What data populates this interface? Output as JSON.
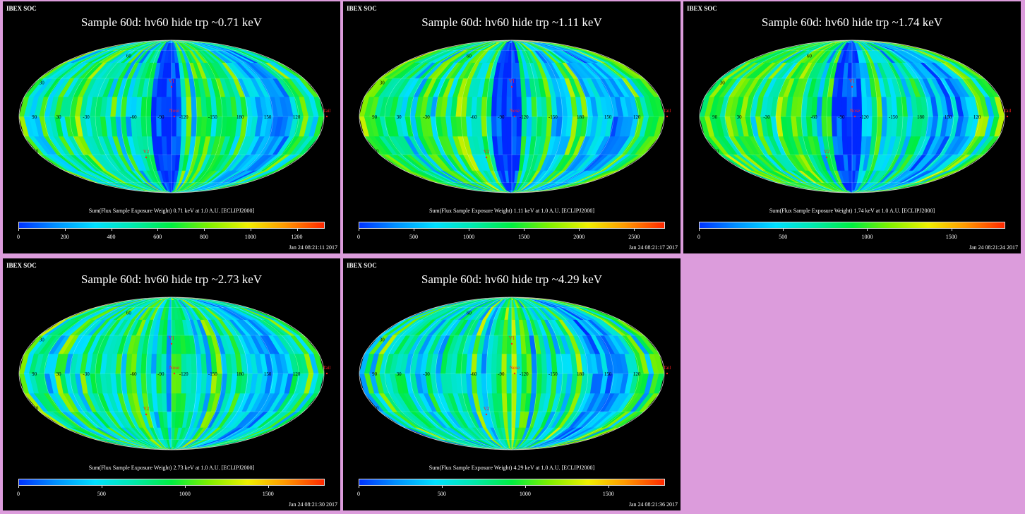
{
  "panels": [
    {
      "header": "IBEX SOC",
      "title": "Sample 60d: hv60 hide trp ~0.71 keV",
      "colorbar_label": "Sum(Flux Sample Exposure Weight)  0.71 keV at 1.0 A.U. [ECLIPJ2000]",
      "ticks": [
        "0",
        "200",
        "400",
        "600",
        "800",
        "1000",
        "1200"
      ],
      "tick_values": [
        0,
        200,
        400,
        600,
        800,
        1000,
        1200
      ],
      "cbar_max": 1320,
      "timestamp": "Jan 24 08:21:11 2017",
      "seed": 11
    },
    {
      "header": "IBEX SOC",
      "title": "Sample 60d: hv60 hide trp ~1.11 keV",
      "colorbar_label": "Sum(Flux Sample Exposure Weight)  1.11 keV at 1.0 A.U. [ECLIPJ2000]",
      "ticks": [
        "0",
        "500",
        "1000",
        "1500",
        "2000",
        "2500"
      ],
      "tick_values": [
        0,
        500,
        1000,
        1500,
        2000,
        2500
      ],
      "cbar_max": 2780,
      "timestamp": "Jan 24 08:21:17 2017",
      "seed": 23
    },
    {
      "header": "IBEX SOC",
      "title": "Sample 60d: hv60 hide trp ~1.74 keV",
      "colorbar_label": "Sum(Flux Sample Exposure Weight)  1.74 keV at 1.0 A.U. [ECLIPJ2000]",
      "ticks": [
        "0",
        "500",
        "1000",
        "1500"
      ],
      "tick_values": [
        0,
        500,
        1000,
        1500
      ],
      "cbar_max": 1820,
      "timestamp": "Jan 24 08:21:24 2017",
      "seed": 37
    },
    {
      "header": "IBEX SOC",
      "title": "Sample 60d: hv60 hide trp ~2.73 keV",
      "colorbar_label": "Sum(Flux Sample Exposure Weight)  2.73 keV at 1.0 A.U. [ECLIPJ2000]",
      "ticks": [
        "0",
        "500",
        "1000",
        "1500"
      ],
      "tick_values": [
        0,
        500,
        1000,
        1500
      ],
      "cbar_max": 1840,
      "timestamp": "Jan 24 08:21:30 2017",
      "seed": 41
    },
    {
      "header": "IBEX SOC",
      "title": "Sample 60d: hv60 hide trp ~4.29 keV",
      "colorbar_label": "Sum(Flux Sample Exposure Weight)  4.29 keV at 1.0 A.U. [ECLIPJ2000]",
      "ticks": [
        "0",
        "500",
        "1000",
        "1500"
      ],
      "tick_values": [
        0,
        500,
        1000,
        1500
      ],
      "cbar_max": 1840,
      "timestamp": "Jan 24 08:21:36 2017",
      "seed": 53
    }
  ],
  "map_labels": {
    "lon": [
      "90",
      "30",
      "-30",
      "-60",
      "-90",
      "-120",
      "-150",
      "180",
      "150",
      "120"
    ],
    "lat": [
      "60",
      "30",
      "-30",
      "-60",
      "-90"
    ],
    "markers": {
      "nose": "Nose",
      "tail": "Tail",
      "v1": "V1",
      "v2": "V2"
    }
  },
  "colors": {
    "background": "#dc9cdc",
    "panel": "#000000",
    "marker": "#ff2020"
  },
  "chart_data": [
    {
      "type": "heatmap",
      "projection": "mollweide",
      "title": "Sample 60d: hv60 hide trp ~0.71 keV",
      "colorbar_range": [
        0,
        1320
      ]
    },
    {
      "type": "heatmap",
      "projection": "mollweide",
      "title": "Sample 60d: hv60 hide trp ~1.11 keV",
      "colorbar_range": [
        0,
        2780
      ]
    },
    {
      "type": "heatmap",
      "projection": "mollweide",
      "title": "Sample 60d: hv60 hide trp ~1.74 keV",
      "colorbar_range": [
        0,
        1820
      ]
    },
    {
      "type": "heatmap",
      "projection": "mollweide",
      "title": "Sample 60d: hv60 hide trp ~2.73 keV",
      "colorbar_range": [
        0,
        1840
      ]
    },
    {
      "type": "heatmap",
      "projection": "mollweide",
      "title": "Sample 60d: hv60 hide trp ~4.29 keV",
      "colorbar_range": [
        0,
        1840
      ]
    }
  ]
}
